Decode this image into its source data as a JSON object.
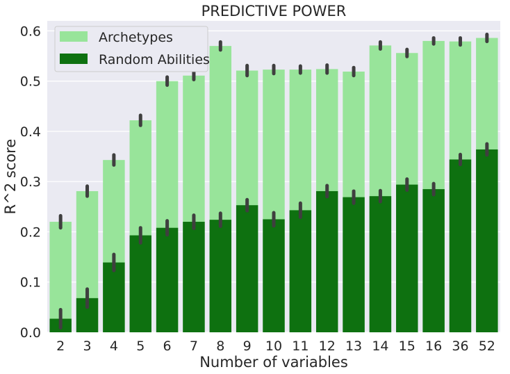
{
  "chart_data": {
    "type": "bar",
    "title": "PREDICTIVE POWER",
    "xlabel": "Number of variables",
    "ylabel": "R^2 score",
    "categories": [
      "2",
      "3",
      "4",
      "5",
      "6",
      "7",
      "8",
      "9",
      "10",
      "11",
      "12",
      "13",
      "14",
      "15",
      "16",
      "36",
      "52"
    ],
    "ylim": [
      0,
      0.62
    ],
    "yticks": [
      "0.0",
      "0.1",
      "0.2",
      "0.3",
      "0.4",
      "0.5",
      "0.6"
    ],
    "grid": true,
    "legend_position": "top-left",
    "series": [
      {
        "name": "Archetypes",
        "color": "#98e49a",
        "values": [
          0.22,
          0.281,
          0.343,
          0.422,
          0.5,
          0.511,
          0.57,
          0.521,
          0.523,
          0.523,
          0.524,
          0.519,
          0.571,
          0.556,
          0.58,
          0.579,
          0.586
        ],
        "errors": [
          0.012,
          0.01,
          0.01,
          0.01,
          0.008,
          0.008,
          0.008,
          0.01,
          0.008,
          0.007,
          0.008,
          0.008,
          0.007,
          0.007,
          0.006,
          0.007,
          0.007
        ]
      },
      {
        "name": "Random Abilities",
        "color": "#0e7110",
        "values": [
          0.027,
          0.068,
          0.139,
          0.193,
          0.208,
          0.22,
          0.224,
          0.253,
          0.225,
          0.243,
          0.281,
          0.269,
          0.271,
          0.294,
          0.285,
          0.344,
          0.364
        ],
        "errors": [
          0.018,
          0.018,
          0.016,
          0.015,
          0.014,
          0.013,
          0.013,
          0.011,
          0.013,
          0.014,
          0.011,
          0.012,
          0.011,
          0.011,
          0.011,
          0.01,
          0.011
        ]
      }
    ]
  }
}
